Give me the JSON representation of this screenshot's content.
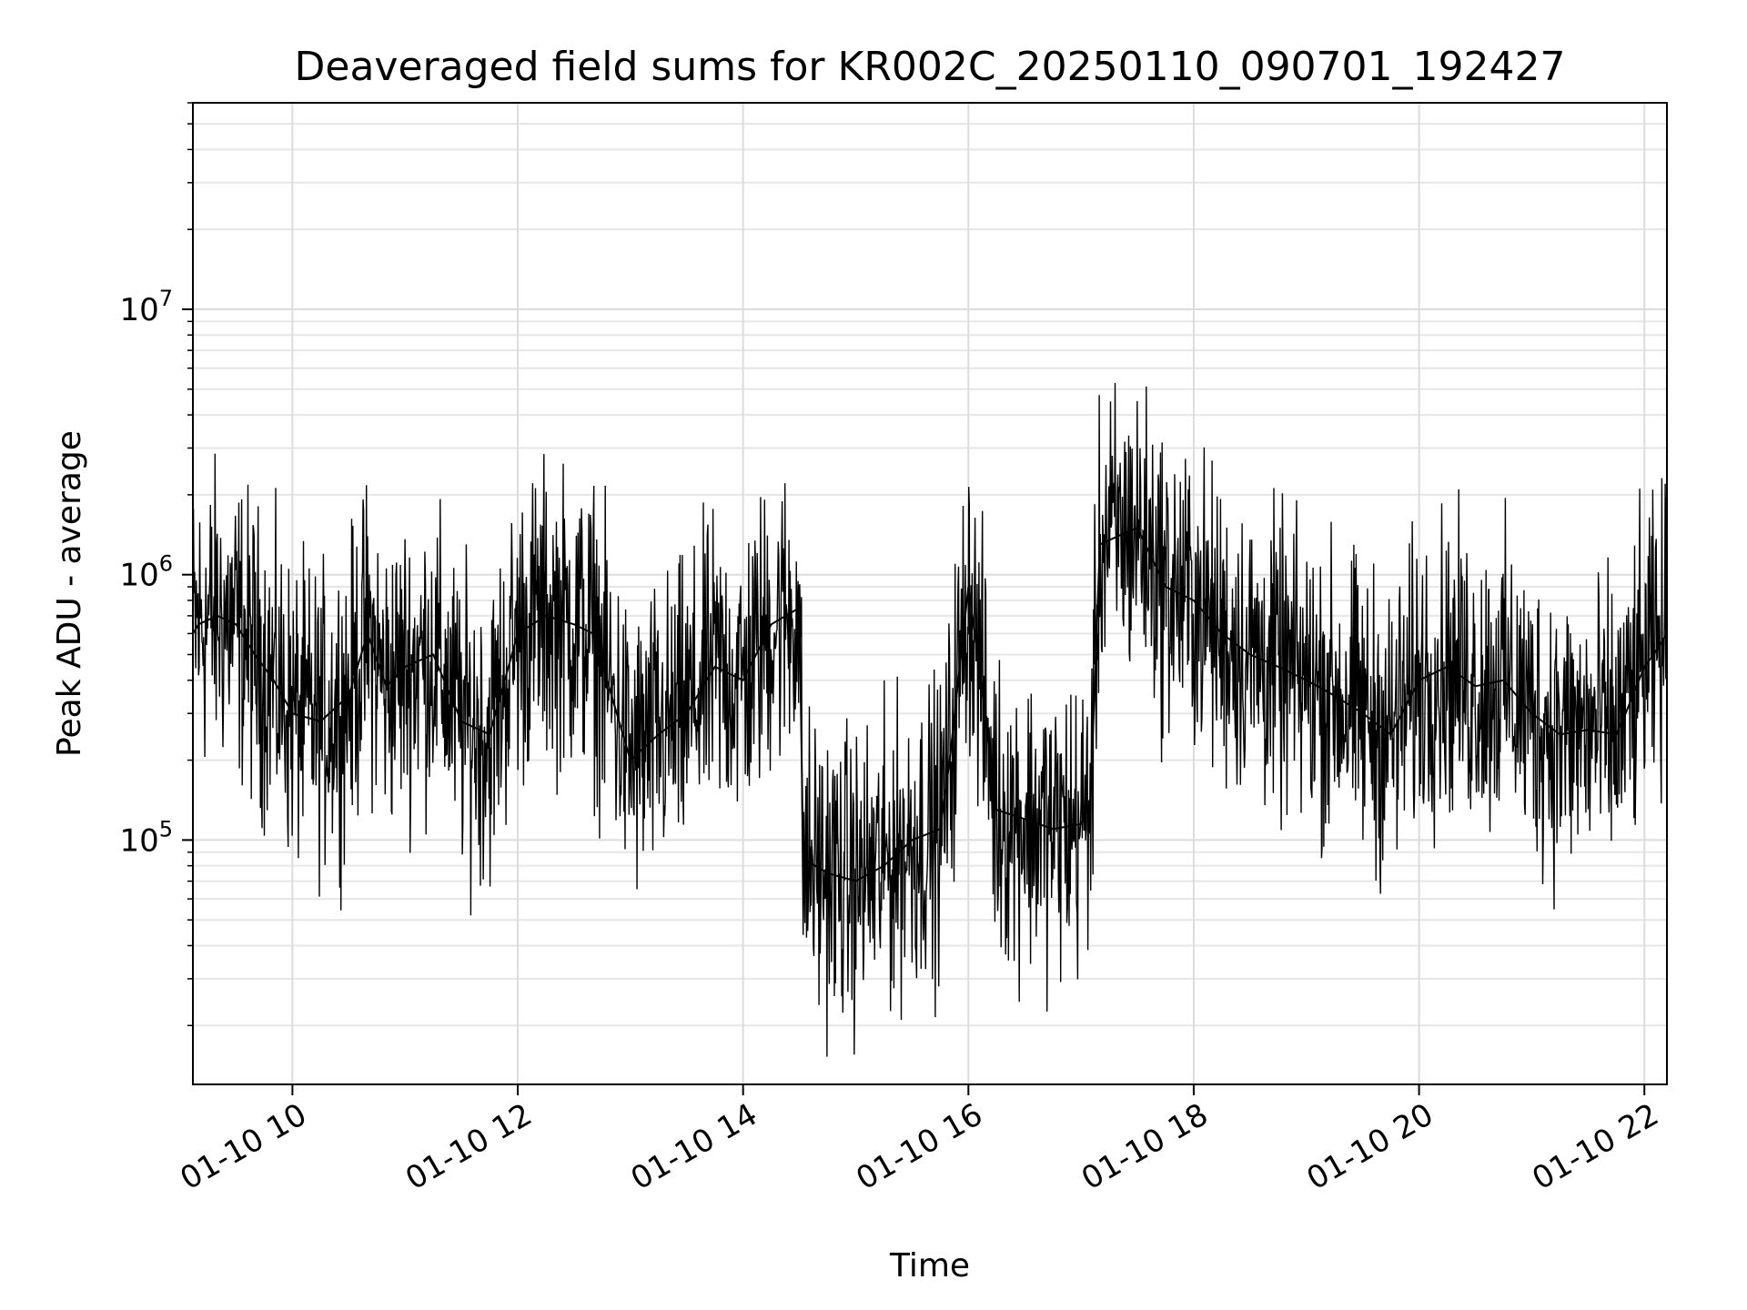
{
  "chart_data": {
    "type": "line",
    "title": "Deaveraged field sums for KR002C_20250110_090701_192427",
    "xlabel": "Time",
    "ylabel": "Peak ADU - average",
    "x_scale": "time",
    "y_scale": "log",
    "xlim": [
      "2025-01-10 09:07",
      "2025-01-10 22:12"
    ],
    "ylim": [
      12000,
      60000000
    ],
    "grid": true,
    "x_ticks": [
      {
        "label": "01-10 10",
        "value": "2025-01-10 10:00"
      },
      {
        "label": "01-10 12",
        "value": "2025-01-10 12:00"
      },
      {
        "label": "01-10 14",
        "value": "2025-01-10 14:00"
      },
      {
        "label": "01-10 16",
        "value": "2025-01-10 16:00"
      },
      {
        "label": "01-10 18",
        "value": "2025-01-10 18:00"
      },
      {
        "label": "01-10 20",
        "value": "2025-01-10 20:00"
      },
      {
        "label": "01-10 22",
        "value": "2025-01-10 22:00"
      }
    ],
    "y_ticks": [
      {
        "base": "10",
        "exp": "5",
        "value": 100000
      },
      {
        "base": "10",
        "exp": "6",
        "value": 1000000
      },
      {
        "base": "10",
        "exp": "7",
        "value": 10000000
      }
    ],
    "series": [
      {
        "color": "#000000",
        "x": [
          "2025-01-10 09:07",
          "2025-01-10 09:10",
          "2025-01-10 09:20",
          "2025-01-10 09:30",
          "2025-01-10 09:40",
          "2025-01-10 09:50",
          "2025-01-10 10:00",
          "2025-01-10 10:15",
          "2025-01-10 10:30",
          "2025-01-10 10:40",
          "2025-01-10 10:50",
          "2025-01-10 11:00",
          "2025-01-10 11:15",
          "2025-01-10 11:30",
          "2025-01-10 11:45",
          "2025-01-10 12:00",
          "2025-01-10 12:15",
          "2025-01-10 12:30",
          "2025-01-10 12:40",
          "2025-01-10 12:50",
          "2025-01-10 13:00",
          "2025-01-10 13:15",
          "2025-01-10 13:30",
          "2025-01-10 13:45",
          "2025-01-10 14:00",
          "2025-01-10 14:15",
          "2025-01-10 14:30",
          "2025-01-10 14:32",
          "2025-01-10 14:45",
          "2025-01-10 15:00",
          "2025-01-10 15:15",
          "2025-01-10 15:30",
          "2025-01-10 15:45",
          "2025-01-10 15:50",
          "2025-01-10 16:00",
          "2025-01-10 16:05",
          "2025-01-10 16:15",
          "2025-01-10 16:30",
          "2025-01-10 16:45",
          "2025-01-10 17:00",
          "2025-01-10 17:05",
          "2025-01-10 17:10",
          "2025-01-10 17:20",
          "2025-01-10 17:30",
          "2025-01-10 17:45",
          "2025-01-10 18:00",
          "2025-01-10 18:15",
          "2025-01-10 18:30",
          "2025-01-10 18:45",
          "2025-01-10 19:00",
          "2025-01-10 19:15",
          "2025-01-10 19:30",
          "2025-01-10 19:45",
          "2025-01-10 20:00",
          "2025-01-10 20:15",
          "2025-01-10 20:30",
          "2025-01-10 20:45",
          "2025-01-10 21:00",
          "2025-01-10 21:15",
          "2025-01-10 21:30",
          "2025-01-10 21:45",
          "2025-01-10 21:50",
          "2025-01-10 22:00",
          "2025-01-10 22:05",
          "2025-01-10 22:12"
        ],
        "y": [
          600000,
          650000,
          700000,
          650000,
          500000,
          400000,
          300000,
          280000,
          350000,
          600000,
          380000,
          450000,
          500000,
          280000,
          250000,
          600000,
          700000,
          650000,
          600000,
          350000,
          200000,
          250000,
          300000,
          450000,
          400000,
          650000,
          750000,
          85000,
          75000,
          70000,
          80000,
          100000,
          110000,
          200000,
          900000,
          500000,
          130000,
          120000,
          110000,
          115000,
          140000,
          1300000,
          1400000,
          1500000,
          900000,
          800000,
          600000,
          500000,
          450000,
          400000,
          350000,
          300000,
          250000,
          400000,
          450000,
          380000,
          400000,
          300000,
          250000,
          260000,
          250000,
          300000,
          450000,
          500000,
          600000
        ]
      }
    ]
  }
}
